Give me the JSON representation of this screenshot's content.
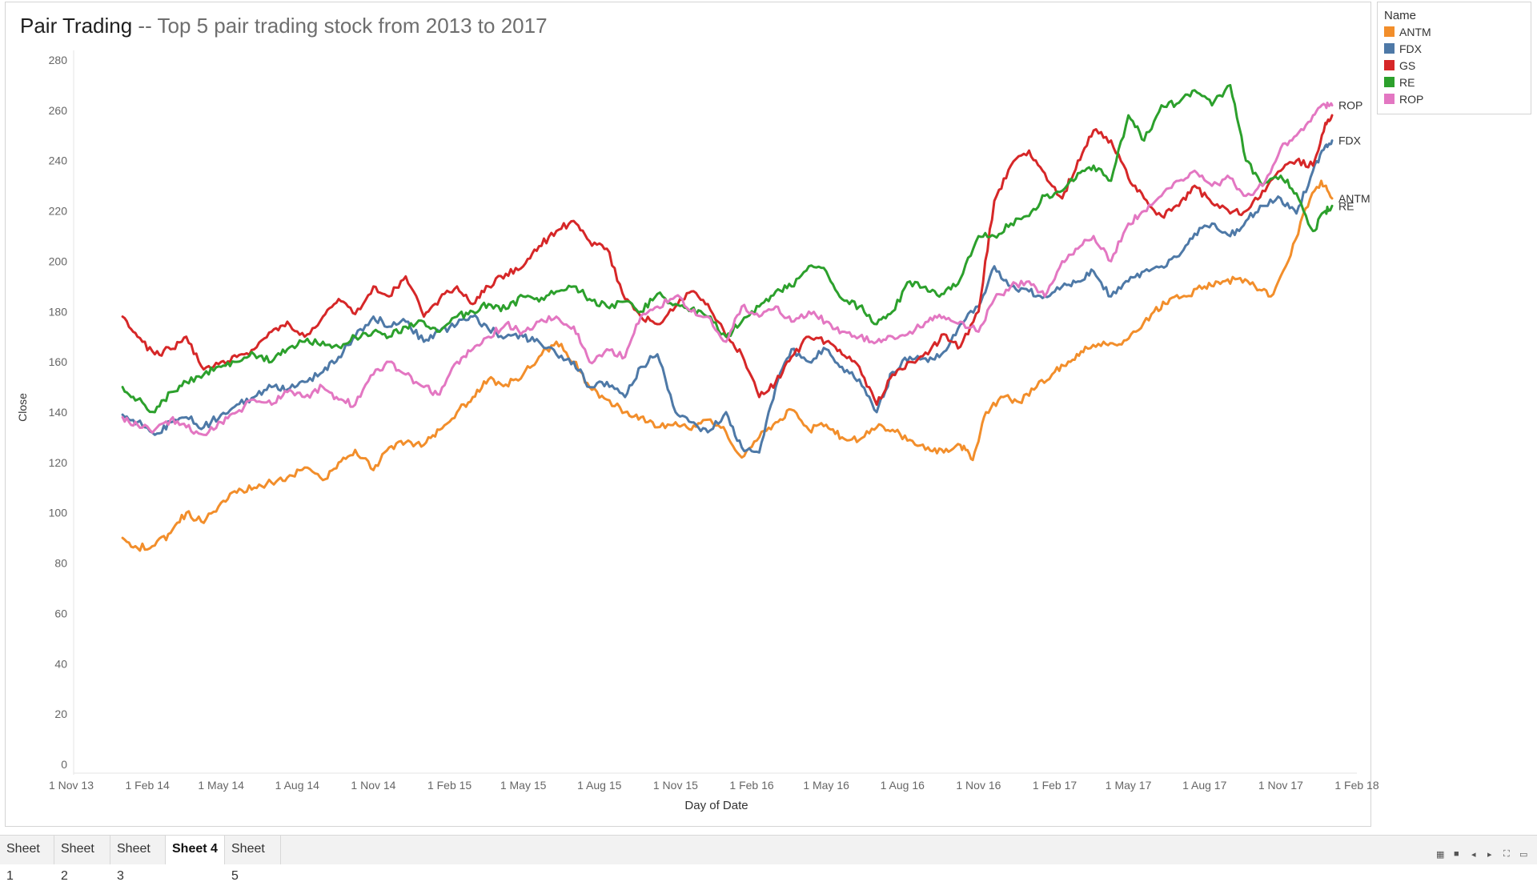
{
  "title": {
    "main": "Pair Trading",
    "subtitle": " -- Top 5 pair trading stock from 2013 to 2017"
  },
  "legend": {
    "title": "Name",
    "items": [
      {
        "label": "ANTM",
        "color": "#f28e2b"
      },
      {
        "label": "FDX",
        "color": "#4e79a7"
      },
      {
        "label": "GS",
        "color": "#d62728"
      },
      {
        "label": "RE",
        "color": "#2ca02c"
      },
      {
        "label": "ROP",
        "color": "#e377c2"
      }
    ]
  },
  "tabs": [
    {
      "label": "Sheet 1",
      "active": false
    },
    {
      "label": "Sheet 2",
      "active": false
    },
    {
      "label": "Sheet 3",
      "active": false
    },
    {
      "label": "Sheet 4",
      "active": true
    },
    {
      "label": "Sheet 5",
      "active": false
    }
  ],
  "nav_icons": [
    "grid-view-icon",
    "square-view-icon",
    "prev-arrow-icon",
    "next-arrow-icon",
    "fit-screen-icon",
    "presentation-icon"
  ],
  "chart_data": {
    "type": "line",
    "xlabel": "Day of Date",
    "ylabel": "Close",
    "ylim": [
      0,
      280
    ],
    "xlim": [
      "2013-11-01",
      "2018-02-01"
    ],
    "yticks": [
      0,
      20,
      40,
      60,
      80,
      100,
      120,
      140,
      160,
      180,
      200,
      220,
      240,
      260,
      280
    ],
    "xticks": [
      {
        "label": "1 Nov 13",
        "date": "2013-11-01"
      },
      {
        "label": "1 Feb 14",
        "date": "2014-02-01"
      },
      {
        "label": "1 May 14",
        "date": "2014-05-01"
      },
      {
        "label": "1 Aug 14",
        "date": "2014-08-01"
      },
      {
        "label": "1 Nov 14",
        "date": "2014-11-01"
      },
      {
        "label": "1 Feb 15",
        "date": "2015-02-01"
      },
      {
        "label": "1 May 15",
        "date": "2015-05-01"
      },
      {
        "label": "1 Aug 15",
        "date": "2015-08-01"
      },
      {
        "label": "1 Nov 15",
        "date": "2015-11-01"
      },
      {
        "label": "1 Feb 16",
        "date": "2016-02-01"
      },
      {
        "label": "1 May 16",
        "date": "2016-05-01"
      },
      {
        "label": "1 Aug 16",
        "date": "2016-08-01"
      },
      {
        "label": "1 Nov 16",
        "date": "2016-11-01"
      },
      {
        "label": "1 Feb 17",
        "date": "2017-02-01"
      },
      {
        "label": "1 May 17",
        "date": "2017-05-01"
      },
      {
        "label": "1 Aug 17",
        "date": "2017-08-01"
      },
      {
        "label": "1 Nov 17",
        "date": "2017-11-01"
      },
      {
        "label": "1 Feb 18",
        "date": "2018-02-01"
      }
    ],
    "grid": false,
    "legend_position": "top-right",
    "series": [
      {
        "name": "ANTM",
        "color": "#f28e2b",
        "end_label": "ANTM",
        "x": [
          "2014-01-02",
          "2014-01-20",
          "2014-02-10",
          "2014-03-01",
          "2014-03-20",
          "2014-04-10",
          "2014-05-01",
          "2014-05-20",
          "2014-06-10",
          "2014-07-01",
          "2014-07-20",
          "2014-08-10",
          "2014-09-01",
          "2014-09-20",
          "2014-10-10",
          "2014-11-01",
          "2014-11-20",
          "2014-12-10",
          "2015-01-01",
          "2015-01-20",
          "2015-02-10",
          "2015-03-01",
          "2015-03-20",
          "2015-04-10",
          "2015-05-01",
          "2015-05-20",
          "2015-06-10",
          "2015-07-01",
          "2015-07-20",
          "2015-08-10",
          "2015-09-01",
          "2015-09-20",
          "2015-10-10",
          "2015-11-01",
          "2015-11-20",
          "2015-12-10",
          "2016-01-01",
          "2016-01-20",
          "2016-02-10",
          "2016-03-01",
          "2016-03-20",
          "2016-04-10",
          "2016-05-01",
          "2016-05-20",
          "2016-06-10",
          "2016-07-01",
          "2016-07-20",
          "2016-08-10",
          "2016-09-01",
          "2016-09-20",
          "2016-10-10",
          "2016-10-25",
          "2016-11-10",
          "2016-12-01",
          "2016-12-20",
          "2017-01-10",
          "2017-02-01",
          "2017-02-20",
          "2017-03-10",
          "2017-04-01",
          "2017-04-20",
          "2017-05-10",
          "2017-06-01",
          "2017-06-20",
          "2017-07-10",
          "2017-08-01",
          "2017-08-20",
          "2017-09-10",
          "2017-10-01",
          "2017-10-20",
          "2017-11-10",
          "2017-12-01",
          "2017-12-20",
          "2018-01-02"
        ],
        "y": [
          90,
          86,
          87,
          92,
          100,
          96,
          104,
          108,
          110,
          112,
          114,
          118,
          113,
          120,
          125,
          117,
          126,
          128,
          127,
          133,
          140,
          146,
          153,
          151,
          155,
          162,
          168,
          160,
          150,
          145,
          140,
          138,
          134,
          136,
          133,
          137,
          132,
          122,
          130,
          136,
          141,
          133,
          135,
          130,
          129,
          134,
          133,
          129,
          126,
          124,
          127,
          121,
          140,
          146,
          144,
          150,
          156,
          160,
          166,
          168,
          167,
          172,
          180,
          185,
          186,
          190,
          191,
          193,
          190,
          186,
          200,
          221,
          232,
          225
        ]
      },
      {
        "name": "FDX",
        "color": "#4e79a7",
        "end_label": "FDX",
        "x": [
          "2014-01-02",
          "2014-01-20",
          "2014-02-10",
          "2014-03-01",
          "2014-03-20",
          "2014-04-10",
          "2014-05-01",
          "2014-05-20",
          "2014-06-10",
          "2014-07-01",
          "2014-07-20",
          "2014-08-10",
          "2014-09-01",
          "2014-09-20",
          "2014-10-10",
          "2014-11-01",
          "2014-11-20",
          "2014-12-10",
          "2015-01-01",
          "2015-01-20",
          "2015-02-10",
          "2015-03-01",
          "2015-03-20",
          "2015-04-10",
          "2015-05-01",
          "2015-05-20",
          "2015-06-10",
          "2015-07-01",
          "2015-07-20",
          "2015-08-10",
          "2015-09-01",
          "2015-09-20",
          "2015-10-10",
          "2015-11-01",
          "2015-11-20",
          "2015-12-10",
          "2016-01-01",
          "2016-01-20",
          "2016-02-10",
          "2016-03-01",
          "2016-03-20",
          "2016-04-10",
          "2016-05-01",
          "2016-05-20",
          "2016-06-10",
          "2016-07-01",
          "2016-07-20",
          "2016-08-10",
          "2016-09-01",
          "2016-09-20",
          "2016-10-10",
          "2016-11-01",
          "2016-11-20",
          "2016-12-10",
          "2017-01-01",
          "2017-01-20",
          "2017-02-10",
          "2017-03-01",
          "2017-03-20",
          "2017-04-10",
          "2017-05-01",
          "2017-05-20",
          "2017-06-10",
          "2017-07-01",
          "2017-07-20",
          "2017-08-10",
          "2017-09-01",
          "2017-09-20",
          "2017-10-10",
          "2017-11-01",
          "2017-11-20",
          "2017-12-10",
          "2017-12-25",
          "2018-01-02"
        ],
        "y": [
          139,
          136,
          131,
          136,
          138,
          134,
          139,
          143,
          146,
          150,
          149,
          152,
          156,
          162,
          170,
          178,
          174,
          176,
          168,
          172,
          175,
          178,
          173,
          170,
          170,
          168,
          163,
          160,
          150,
          152,
          146,
          158,
          163,
          140,
          136,
          132,
          140,
          126,
          124,
          150,
          165,
          160,
          165,
          158,
          153,
          140,
          156,
          162,
          160,
          164,
          175,
          182,
          198,
          190,
          188,
          186,
          190,
          192,
          196,
          186,
          192,
          196,
          198,
          202,
          211,
          215,
          210,
          216,
          222,
          225,
          219,
          236,
          246,
          248
        ]
      },
      {
        "name": "GS",
        "color": "#d62728",
        "end_label": "",
        "x": [
          "2014-01-02",
          "2014-01-20",
          "2014-02-10",
          "2014-03-01",
          "2014-03-20",
          "2014-04-10",
          "2014-05-01",
          "2014-05-20",
          "2014-06-10",
          "2014-07-01",
          "2014-07-20",
          "2014-08-10",
          "2014-09-01",
          "2014-09-20",
          "2014-10-10",
          "2014-11-01",
          "2014-11-20",
          "2014-12-10",
          "2015-01-01",
          "2015-01-20",
          "2015-02-10",
          "2015-03-01",
          "2015-03-20",
          "2015-04-10",
          "2015-05-01",
          "2015-05-20",
          "2015-06-10",
          "2015-07-01",
          "2015-07-20",
          "2015-08-10",
          "2015-09-01",
          "2015-09-20",
          "2015-10-10",
          "2015-11-01",
          "2015-11-20",
          "2015-12-10",
          "2016-01-01",
          "2016-01-20",
          "2016-02-10",
          "2016-03-01",
          "2016-03-20",
          "2016-04-10",
          "2016-05-01",
          "2016-05-20",
          "2016-06-10",
          "2016-07-01",
          "2016-07-20",
          "2016-08-10",
          "2016-09-01",
          "2016-09-20",
          "2016-10-10",
          "2016-11-01",
          "2016-11-20",
          "2016-12-10",
          "2017-01-01",
          "2017-01-20",
          "2017-02-10",
          "2017-03-01",
          "2017-03-20",
          "2017-04-10",
          "2017-05-01",
          "2017-05-20",
          "2017-06-10",
          "2017-07-01",
          "2017-07-20",
          "2017-08-10",
          "2017-09-01",
          "2017-09-20",
          "2017-10-10",
          "2017-11-01",
          "2017-11-20",
          "2017-12-10",
          "2017-12-25",
          "2018-01-02"
        ],
        "y": [
          178,
          170,
          163,
          165,
          170,
          157,
          160,
          162,
          165,
          172,
          176,
          170,
          178,
          185,
          179,
          190,
          186,
          194,
          178,
          185,
          190,
          183,
          190,
          195,
          198,
          206,
          212,
          216,
          208,
          205,
          185,
          178,
          175,
          182,
          188,
          183,
          170,
          163,
          146,
          152,
          162,
          170,
          168,
          163,
          158,
          143,
          155,
          160,
          163,
          171,
          166,
          180,
          224,
          238,
          244,
          235,
          225,
          240,
          252,
          248,
          233,
          225,
          218,
          222,
          230,
          223,
          219,
          220,
          228,
          236,
          240,
          238,
          255,
          258
        ]
      },
      {
        "name": "RE",
        "color": "#2ca02c",
        "end_label": "RE",
        "x": [
          "2014-01-02",
          "2014-01-20",
          "2014-02-10",
          "2014-03-01",
          "2014-03-20",
          "2014-04-10",
          "2014-05-01",
          "2014-05-20",
          "2014-06-10",
          "2014-07-01",
          "2014-07-20",
          "2014-08-10",
          "2014-09-01",
          "2014-09-20",
          "2014-10-10",
          "2014-11-01",
          "2014-11-20",
          "2014-12-10",
          "2015-01-01",
          "2015-01-20",
          "2015-02-10",
          "2015-03-01",
          "2015-03-20",
          "2015-04-10",
          "2015-05-01",
          "2015-05-20",
          "2015-06-10",
          "2015-07-01",
          "2015-07-20",
          "2015-08-10",
          "2015-09-01",
          "2015-09-20",
          "2015-10-10",
          "2015-11-01",
          "2015-11-20",
          "2015-12-10",
          "2016-01-01",
          "2016-01-20",
          "2016-02-10",
          "2016-03-01",
          "2016-03-20",
          "2016-04-10",
          "2016-05-01",
          "2016-05-20",
          "2016-06-10",
          "2016-07-01",
          "2016-07-20",
          "2016-08-10",
          "2016-09-01",
          "2016-09-20",
          "2016-10-10",
          "2016-11-01",
          "2016-11-20",
          "2016-12-10",
          "2017-01-01",
          "2017-01-20",
          "2017-02-10",
          "2017-03-01",
          "2017-03-20",
          "2017-04-10",
          "2017-05-01",
          "2017-05-20",
          "2017-06-10",
          "2017-07-01",
          "2017-07-20",
          "2017-08-10",
          "2017-09-01",
          "2017-09-20",
          "2017-10-10",
          "2017-11-01",
          "2017-11-20",
          "2017-12-10",
          "2017-12-25",
          "2018-01-02"
        ],
        "y": [
          150,
          145,
          140,
          148,
          152,
          155,
          158,
          160,
          163,
          160,
          165,
          168,
          168,
          166,
          170,
          172,
          170,
          174,
          176,
          172,
          178,
          180,
          183,
          181,
          186,
          184,
          188,
          190,
          185,
          182,
          184,
          180,
          187,
          183,
          181,
          178,
          170,
          176,
          182,
          188,
          190,
          198,
          196,
          185,
          182,
          175,
          180,
          192,
          188,
          187,
          193,
          210,
          210,
          215,
          218,
          226,
          228,
          235,
          238,
          232,
          258,
          248,
          262,
          263,
          268,
          262,
          270,
          240,
          230,
          234,
          227,
          212,
          220,
          222
        ]
      },
      {
        "name": "ROP",
        "color": "#e377c2",
        "end_label": "ROP",
        "x": [
          "2014-01-02",
          "2014-01-20",
          "2014-02-10",
          "2014-03-01",
          "2014-03-20",
          "2014-04-10",
          "2014-05-01",
          "2014-05-20",
          "2014-06-10",
          "2014-07-01",
          "2014-07-20",
          "2014-08-10",
          "2014-09-01",
          "2014-09-20",
          "2014-10-10",
          "2014-11-01",
          "2014-11-20",
          "2014-12-10",
          "2015-01-01",
          "2015-01-20",
          "2015-02-10",
          "2015-03-01",
          "2015-03-20",
          "2015-04-10",
          "2015-05-01",
          "2015-05-20",
          "2015-06-10",
          "2015-07-01",
          "2015-07-20",
          "2015-08-10",
          "2015-09-01",
          "2015-09-20",
          "2015-10-10",
          "2015-11-01",
          "2015-11-20",
          "2015-12-10",
          "2016-01-01",
          "2016-01-20",
          "2016-02-10",
          "2016-03-01",
          "2016-03-20",
          "2016-04-10",
          "2016-05-01",
          "2016-05-20",
          "2016-06-10",
          "2016-07-01",
          "2016-07-20",
          "2016-08-10",
          "2016-09-01",
          "2016-09-20",
          "2016-10-10",
          "2016-11-01",
          "2016-11-20",
          "2016-12-10",
          "2017-01-01",
          "2017-01-20",
          "2017-02-10",
          "2017-03-01",
          "2017-03-20",
          "2017-04-10",
          "2017-05-01",
          "2017-05-20",
          "2017-06-10",
          "2017-07-01",
          "2017-07-20",
          "2017-08-10",
          "2017-09-01",
          "2017-09-20",
          "2017-10-10",
          "2017-11-01",
          "2017-11-20",
          "2017-12-10",
          "2017-12-25",
          "2018-01-02"
        ],
        "y": [
          138,
          135,
          133,
          137,
          134,
          131,
          136,
          140,
          145,
          143,
          148,
          146,
          150,
          145,
          143,
          155,
          160,
          155,
          150,
          147,
          160,
          165,
          170,
          175,
          172,
          176,
          178,
          174,
          160,
          165,
          162,
          178,
          182,
          186,
          180,
          178,
          168,
          182,
          178,
          182,
          176,
          180,
          176,
          172,
          170,
          168,
          170,
          172,
          176,
          178,
          176,
          172,
          185,
          190,
          192,
          186,
          200,
          205,
          210,
          200,
          215,
          220,
          226,
          232,
          236,
          230,
          233,
          226,
          230,
          245,
          250,
          258,
          262,
          262
        ]
      }
    ]
  }
}
